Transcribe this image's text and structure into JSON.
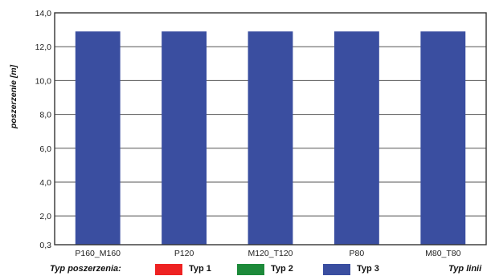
{
  "chart_data": {
    "type": "bar",
    "ylabel": "poszerzenie [m]",
    "ylim": [
      0.3,
      14.0
    ],
    "y_ticks": [
      "14,0",
      "12,0",
      "10,0",
      "8,0",
      "6,0",
      "4,0",
      "2,0",
      "0,3"
    ],
    "categories": [
      "P160_M160",
      "P120",
      "M120_T120",
      "P80",
      "M80_T80"
    ],
    "series": [
      {
        "name": "Typ 3",
        "values": [
          12.9,
          12.9,
          12.9,
          12.9,
          12.9
        ],
        "color": "#3a4ea0"
      }
    ],
    "grid": true,
    "legend": {
      "title": "Typ poszerzenia:",
      "placement": "bottom",
      "items": [
        {
          "label": "Typ 1",
          "color": "#ee2222"
        },
        {
          "label": "Typ 2",
          "color": "#1d8a3a"
        },
        {
          "label": "Typ 3",
          "color": "#3a4ea0"
        }
      ],
      "right_label": "Typ linii"
    }
  }
}
